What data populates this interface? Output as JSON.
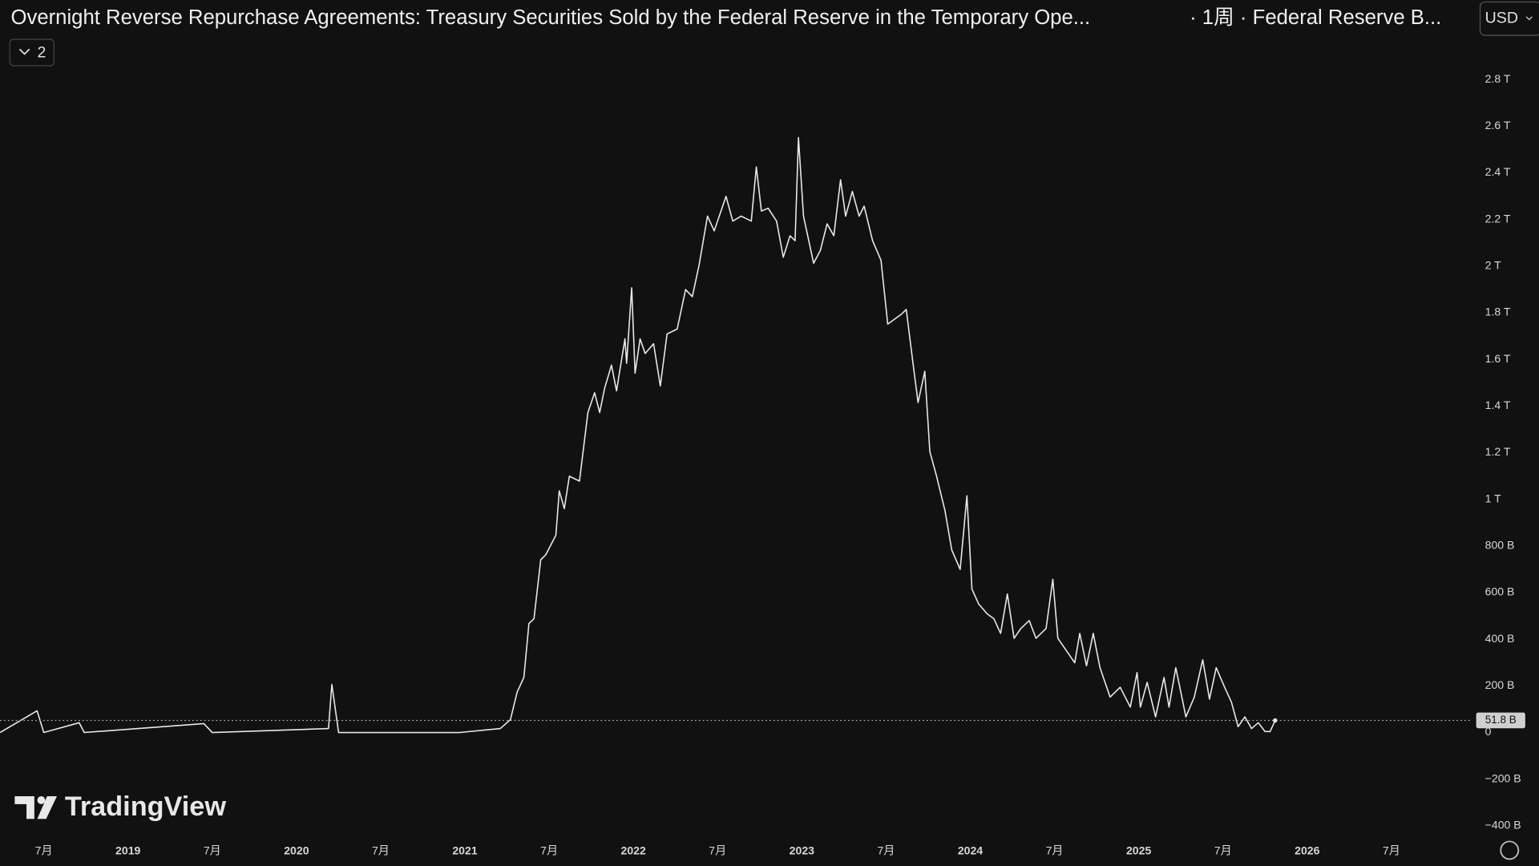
{
  "chart_data": {
    "type": "line",
    "title": "Overnight Reverse Repurchase Agreements: Treasury Securities Sold by the Federal Reserve in the Temporary Ope...",
    "subtitle": "· 1周 · Federal Reserve B...",
    "currency": "USD",
    "collapse_count": "2",
    "brand": "TradingView",
    "color": "#e8e8e8",
    "x": [
      2018.24,
      2018.46,
      2018.5,
      2018.71,
      2018.74,
      2019.45,
      2019.5,
      2020.19,
      2020.21,
      2020.25,
      2020.97,
      2021.21,
      2021.27,
      2021.31,
      2021.35,
      2021.38,
      2021.41,
      2021.45,
      2021.48,
      2021.54,
      2021.56,
      2021.59,
      2021.62,
      2021.68,
      2021.73,
      2021.77,
      2021.8,
      2021.83,
      2021.87,
      2021.9,
      2021.95,
      2021.96,
      2021.99,
      2022.01,
      2022.04,
      2022.07,
      2022.12,
      2022.16,
      2022.2,
      2022.26,
      2022.31,
      2022.35,
      2022.39,
      2022.44,
      2022.48,
      2022.55,
      2022.59,
      2022.64,
      2022.7,
      2022.73,
      2022.76,
      2022.8,
      2022.85,
      2022.89,
      2022.93,
      2022.96,
      2022.98,
      2023.01,
      2023.07,
      2023.11,
      2023.15,
      2023.19,
      2023.23,
      2023.26,
      2023.3,
      2023.34,
      2023.37,
      2023.42,
      2023.47,
      2023.51,
      2023.55,
      2023.59,
      2023.62,
      2023.66,
      2023.69,
      2023.73,
      2023.76,
      2023.8,
      2023.85,
      2023.89,
      2023.94,
      2023.98,
      2024.01,
      2024.05,
      2024.1,
      2024.14,
      2024.18,
      2024.22,
      2024.26,
      2024.3,
      2024.35,
      2024.39,
      2024.45,
      2024.49,
      2024.52,
      2024.58,
      2024.62,
      2024.65,
      2024.69,
      2024.73,
      2024.77,
      2024.83,
      2024.89,
      2024.95,
      2024.99,
      2025.01,
      2025.05,
      2025.1,
      2025.15,
      2025.18,
      2025.22,
      2025.28,
      2025.33,
      2025.38,
      2025.42,
      2025.46,
      2025.51,
      2025.55,
      2025.59,
      2025.63,
      2025.67,
      2025.71,
      2025.75,
      2025.78,
      2025.81
    ],
    "values": [
      0,
      93,
      0,
      42,
      0,
      38,
      0,
      17,
      206,
      0,
      0,
      17,
      55,
      173,
      236,
      467,
      488,
      741,
      762,
      846,
      1036,
      960,
      1099,
      1078,
      1372,
      1457,
      1372,
      1478,
      1575,
      1465,
      1688,
      1583,
      1907,
      1541,
      1688,
      1625,
      1667,
      1486,
      1709,
      1730,
      1899,
      1869,
      2004,
      2214,
      2151,
      2299,
      2193,
      2214,
      2193,
      2425,
      2236,
      2248,
      2193,
      2038,
      2130,
      2109,
      2551,
      2214,
      2012,
      2067,
      2181,
      2130,
      2370,
      2214,
      2320,
      2214,
      2257,
      2109,
      2025,
      1751,
      1772,
      1793,
      1814,
      1583,
      1415,
      1549,
      1204,
      1099,
      951,
      783,
      699,
      1015,
      615,
      551,
      509,
      488,
      425,
      594,
      404,
      446,
      480,
      404,
      446,
      657,
      404,
      341,
      299,
      425,
      286,
      425,
      278,
      152,
      194,
      109,
      257,
      109,
      215,
      67,
      236,
      109,
      278,
      67,
      152,
      312,
      143,
      278,
      194,
      131,
      25,
      67,
      17,
      42,
      4,
      4,
      51.8
    ],
    "value_labels": [
      null,
      null,
      null,
      null,
      null,
      null,
      null,
      null,
      null,
      null,
      null,
      null,
      null,
      null,
      null,
      null,
      null,
      null,
      null,
      null,
      null,
      null,
      null,
      null,
      null,
      null,
      null,
      null,
      null,
      null,
      null,
      null,
      null,
      null,
      null,
      null,
      null,
      null,
      null,
      null,
      null,
      null,
      null,
      null,
      null,
      null,
      null,
      null,
      null,
      null,
      null,
      null,
      null,
      null,
      null,
      null,
      null,
      null,
      null,
      null,
      null,
      null,
      null,
      null,
      null,
      null,
      null,
      null,
      null,
      null,
      null,
      null,
      null,
      null,
      null,
      null,
      null,
      null,
      null,
      null,
      null,
      null,
      null,
      null,
      null,
      null,
      null,
      null,
      null,
      null,
      null,
      null,
      null,
      null,
      null,
      null,
      null,
      null,
      null,
      null,
      null,
      null,
      null,
      null,
      null,
      null,
      null,
      null,
      null,
      null,
      null,
      null,
      null,
      null,
      null,
      null,
      null,
      null,
      null,
      null,
      null,
      null,
      null,
      null,
      "51.8 B"
    ],
    "xlim": [
      2018.24,
      2026.98
    ],
    "xticks": [
      {
        "value": 2018.5,
        "label": "7月"
      },
      2019,
      {
        "value": 2019.5,
        "label": "7月"
      },
      2020,
      {
        "value": 2020.5,
        "label": "7月"
      },
      2021,
      {
        "value": 2021.5,
        "label": "7月"
      },
      2022,
      {
        "value": 2022.5,
        "label": "7月"
      },
      2023,
      {
        "value": 2023.5,
        "label": "7月"
      },
      2024,
      {
        "value": 2024.5,
        "label": "7月"
      },
      2025,
      {
        "value": 2025.5,
        "label": "7月"
      },
      2026,
      {
        "value": 2026.5,
        "label": "7月"
      }
    ],
    "ylim": [
      -460,
      2970
    ],
    "yticks": [
      {
        "value": -400,
        "label": "−400 B"
      },
      {
        "value": -200,
        "label": "−200 B"
      },
      0,
      {
        "value": 200,
        "label": "200 B"
      },
      {
        "value": 400,
        "label": "400 B"
      },
      {
        "value": 600,
        "label": "600 B"
      },
      {
        "value": 800,
        "label": "800 B"
      },
      {
        "value": 1000,
        "label": "1 T"
      },
      {
        "value": 1200,
        "label": "1.2 T"
      },
      {
        "value": 1400,
        "label": "1.4 T"
      },
      {
        "value": 1600,
        "label": "1.6 T"
      },
      {
        "value": 1800,
        "label": "1.8 T"
      },
      {
        "value": 2000,
        "label": "2 T"
      },
      {
        "value": 2200,
        "label": "2.2 T"
      },
      {
        "value": 2400,
        "label": "2.4 T"
      },
      {
        "value": 2600,
        "label": "2.6 T"
      },
      {
        "value": 2800,
        "label": "2.8 T"
      }
    ]
  }
}
